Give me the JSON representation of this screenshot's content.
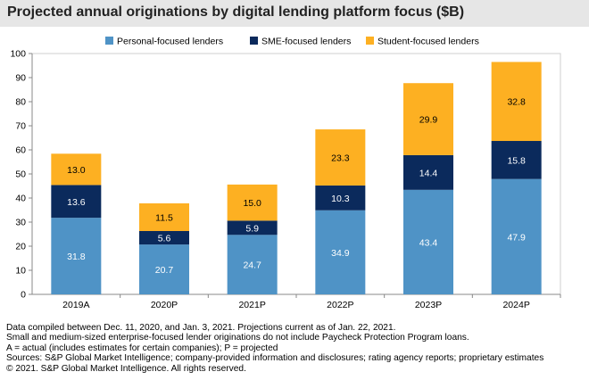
{
  "title": "Projected annual originations by digital lending platform focus ($B)",
  "chart_data": {
    "type": "bar",
    "stacked": true,
    "categories": [
      "2019A",
      "2020P",
      "2021P",
      "2022P",
      "2023P",
      "2024P"
    ],
    "series": [
      {
        "name": "Personal-focused lenders",
        "color": "#4f93c6",
        "values": [
          31.8,
          20.7,
          24.7,
          34.9,
          43.4,
          47.9
        ]
      },
      {
        "name": "SME-focused lenders",
        "color": "#0b2a5c",
        "values": [
          13.6,
          5.6,
          5.9,
          10.3,
          14.4,
          15.8
        ]
      },
      {
        "name": "Student-focused lenders",
        "color": "#fdb022",
        "values": [
          13.0,
          11.5,
          15.0,
          23.3,
          29.9,
          32.8
        ]
      }
    ],
    "data_labels": [
      [
        "31.8",
        "20.7",
        "24.7",
        "34.9",
        "43.4",
        "47.9"
      ],
      [
        "13.6",
        "5.6",
        "5.9",
        "10.3",
        "14.4",
        "15.8"
      ],
      [
        "13.0",
        "11.5",
        "15.0",
        "23.3",
        "29.9",
        "32.8"
      ]
    ],
    "ylim": [
      0,
      100
    ],
    "yticks": [
      "0",
      "10",
      "20",
      "30",
      "40",
      "50",
      "60",
      "70",
      "80",
      "90",
      "100"
    ],
    "legend_position": "top",
    "grid": false
  },
  "notes": [
    "Data compiled between Dec. 11, 2020, and Jan. 3, 2021. Projections current as of Jan. 22, 2021.",
    "Small and medium-sized enterprise-focused lender originations do not include Paycheck Protection Program loans.",
    "A = actual (includes estimates for certain companies); P = projected",
    "Sources: S&P Global Market Intelligence; company-provided information and disclosures; rating agency reports; proprietary estimates",
    "© 2021. S&P Global Market Intelligence. All rights reserved."
  ]
}
